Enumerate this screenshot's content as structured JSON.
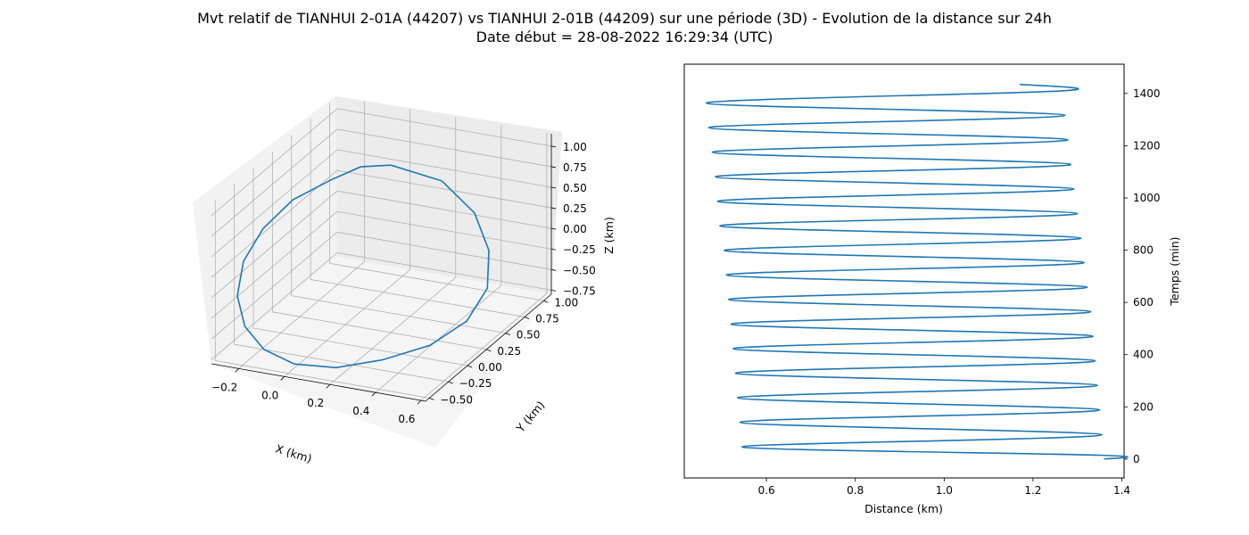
{
  "figure": {
    "title_line1": "Mvt relatif de TIANHUI 2-01A (44207) vs TIANHUI 2-01B (44209) sur une période (3D) - Evolution de la distance sur 24h",
    "title_line2": "Date début = 28-08-2022 16:29:34 (UTC)"
  },
  "colors": {
    "series": "#1f77b4",
    "grid": "#b0b0b0",
    "pane_left": "#f2f2f2",
    "pane_back": "#ececec",
    "pane_floor": "#f5f5f5"
  },
  "chart_data": [
    {
      "type": "line3d",
      "xlabel": "X (km)",
      "ylabel": "Y (km)",
      "zlabel": "Z (km)",
      "xticks": [
        "−0.2",
        "0.0",
        "0.2",
        "0.4",
        "0.6"
      ],
      "yticks": [
        "−0.50",
        "−0.25",
        "0.00",
        "0.25",
        "0.50",
        "0.75",
        "1.00"
      ],
      "zticks": [
        "−0.75",
        "−0.50",
        "−0.25",
        "0.00",
        "0.25",
        "0.50",
        "0.75",
        "1.00"
      ],
      "xlim": [
        -0.32,
        0.62
      ],
      "ylim": [
        -0.55,
        1.1
      ],
      "zlim": [
        -0.8,
        1.15
      ],
      "grid": true,
      "series": [
        {
          "x": [
            0.1,
            0.3,
            0.45,
            0.54,
            0.58,
            0.55,
            0.45,
            0.3,
            0.15,
            0.0,
            -0.12,
            -0.21,
            -0.27,
            -0.29,
            -0.26,
            -0.19,
            -0.08,
            0.0,
            0.1
          ],
          "y": [
            0.55,
            0.62,
            0.6,
            0.52,
            0.38,
            0.2,
            0.02,
            -0.16,
            -0.32,
            -0.42,
            -0.46,
            -0.44,
            -0.36,
            -0.22,
            -0.05,
            0.13,
            0.3,
            0.45,
            0.55
          ],
          "z": [
            0.95,
            0.8,
            0.5,
            0.15,
            -0.18,
            -0.45,
            -0.65,
            -0.76,
            -0.8,
            -0.75,
            -0.6,
            -0.38,
            -0.1,
            0.2,
            0.48,
            0.72,
            0.88,
            0.96,
            0.95
          ]
        }
      ]
    },
    {
      "type": "line",
      "xlabel": "Distance (km)",
      "ylabel": "Temps (min)",
      "xlim": [
        0.415,
        1.405
      ],
      "ylim": [
        -72,
        1512
      ],
      "xticks": [
        0.6,
        0.8,
        1.0,
        1.2,
        1.4
      ],
      "yticks": [
        0,
        200,
        400,
        600,
        800,
        1000,
        1200,
        1400
      ],
      "xtick_labels": [
        "0.6",
        "0.8",
        "1.0",
        "1.2",
        "1.4"
      ],
      "ytick_labels": [
        "0",
        "200",
        "400",
        "600",
        "800",
        "1000",
        "1200",
        "1400"
      ],
      "grid": false,
      "y_axis_side": "right",
      "series": [
        {
          "points": [
            [
              1.36,
              0
            ],
            [
              1.35,
              15
            ],
            [
              0.545,
              47
            ],
            [
              1.355,
              93
            ],
            [
              0.54,
              141
            ],
            [
              1.35,
              188
            ],
            [
              0.535,
              235
            ],
            [
              1.345,
              282
            ],
            [
              0.53,
              329
            ],
            [
              1.34,
              376
            ],
            [
              0.525,
              423
            ],
            [
              1.335,
              470
            ],
            [
              0.52,
              517
            ],
            [
              1.33,
              564
            ],
            [
              0.515,
              611
            ],
            [
              1.322,
              658
            ],
            [
              0.51,
              705
            ],
            [
              1.315,
              752
            ],
            [
              0.505,
              799
            ],
            [
              1.308,
              846
            ],
            [
              0.495,
              893
            ],
            [
              1.3,
              940
            ],
            [
              0.49,
              987
            ],
            [
              1.292,
              1034
            ],
            [
              0.485,
              1081
            ],
            [
              1.285,
              1128
            ],
            [
              0.478,
              1175
            ],
            [
              1.278,
              1222
            ],
            [
              0.47,
              1269
            ],
            [
              1.272,
              1316
            ],
            [
              0.465,
              1363
            ],
            [
              1.265,
              1410
            ],
            [
              1.17,
              1435
            ]
          ]
        }
      ]
    }
  ]
}
